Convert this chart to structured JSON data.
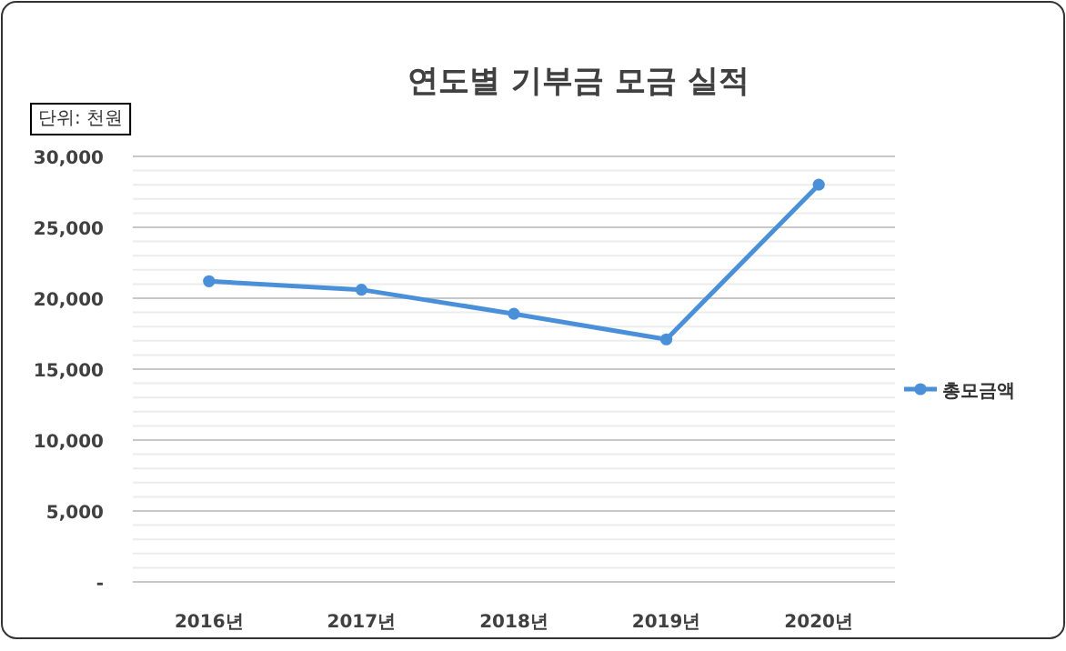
{
  "chart_data": {
    "type": "line",
    "title": "연도별 기부금 모금 실적",
    "annotations": [
      "단위: 천원"
    ],
    "categories": [
      "2016년",
      "2017년",
      "2018년",
      "2019년",
      "2020년"
    ],
    "series": [
      {
        "name": "총모금액",
        "color": "#4a90d9",
        "values": [
          21200,
          20600,
          18900,
          17100,
          28000
        ]
      }
    ],
    "ylim": [
      0,
      30000
    ],
    "yticks": [
      {
        "value": 0,
        "label": "-"
      },
      {
        "value": 5000,
        "label": "5,000"
      },
      {
        "value": 10000,
        "label": "10,000"
      },
      {
        "value": 15000,
        "label": "15,000"
      },
      {
        "value": 20000,
        "label": "20,000"
      },
      {
        "value": 25000,
        "label": "25,000"
      },
      {
        "value": 30000,
        "label": "30,000"
      }
    ],
    "grid": true,
    "legend": "right",
    "marker": "circle"
  }
}
